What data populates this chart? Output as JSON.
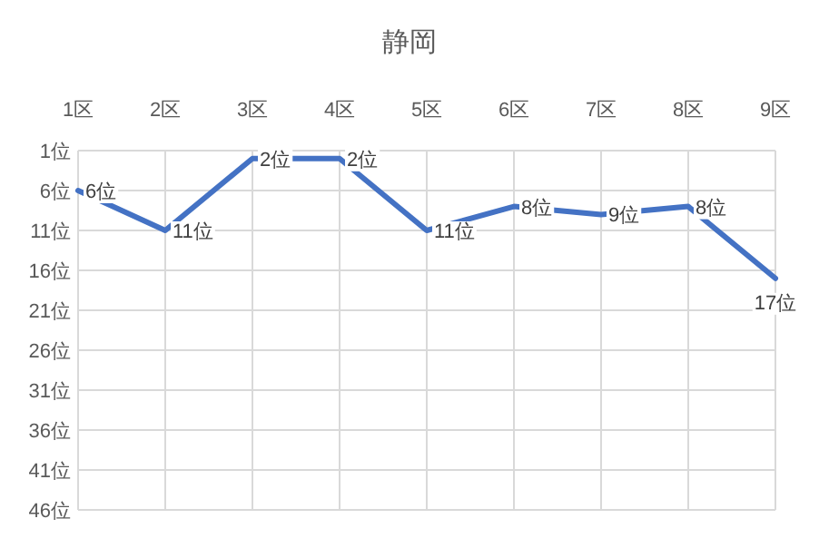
{
  "chart_data": {
    "type": "line",
    "title": "静岡",
    "categories": [
      "1区",
      "2区",
      "3区",
      "4区",
      "5区",
      "6区",
      "7区",
      "8区",
      "9区"
    ],
    "series": [
      {
        "color": "#4472c4",
        "values": [
          6,
          11,
          2,
          2,
          11,
          8,
          9,
          8,
          17
        ],
        "value_labels": [
          "6位",
          "11位",
          "2位",
          "2位",
          "11位",
          "8位",
          "9位",
          "8位",
          "17位"
        ]
      }
    ],
    "ylim": [
      46,
      1
    ],
    "yticks": [
      {
        "value": 1,
        "label": "1位"
      },
      {
        "value": 6,
        "label": "6位"
      },
      {
        "value": 11,
        "label": "11位"
      },
      {
        "value": 16,
        "label": "16位"
      },
      {
        "value": 21,
        "label": "21位"
      },
      {
        "value": 26,
        "label": "26位"
      },
      {
        "value": 31,
        "label": "31位"
      },
      {
        "value": 36,
        "label": "36位"
      },
      {
        "value": 41,
        "label": "41位"
      },
      {
        "value": 46,
        "label": "46位"
      }
    ],
    "grid": true,
    "marker": "none",
    "line_style": "solid"
  }
}
